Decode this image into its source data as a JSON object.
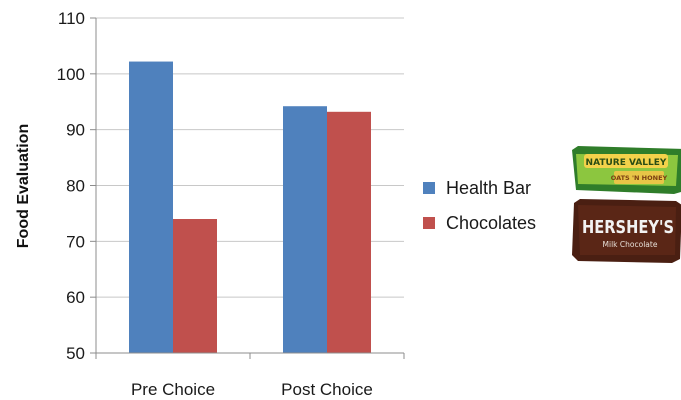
{
  "chart_data": {
    "type": "bar",
    "categories": [
      "Pre Choice",
      "Post Choice"
    ],
    "series": [
      {
        "name": "Health Bar",
        "values": [
          102.2,
          94.2
        ],
        "color": "#4f81bd"
      },
      {
        "name": "Chocolates",
        "values": [
          74.0,
          93.2
        ],
        "color": "#c0504d"
      }
    ],
    "ylabel": "Food Evaluation",
    "xlabel": "",
    "ylim": [
      50,
      110
    ],
    "yticks": [
      50,
      60,
      70,
      80,
      90,
      100,
      110
    ],
    "grid": true,
    "legend_position": "right"
  },
  "images": {
    "granola_bar": {
      "icon": "granola-bar-wrapper-icon",
      "brand": "NATURE VALLEY",
      "subtext": "OATS 'N HONEY"
    },
    "chocolate_bar": {
      "icon": "chocolate-bar-wrapper-icon",
      "brand": "HERSHEY'S",
      "subtext": "Milk Chocolate"
    }
  }
}
